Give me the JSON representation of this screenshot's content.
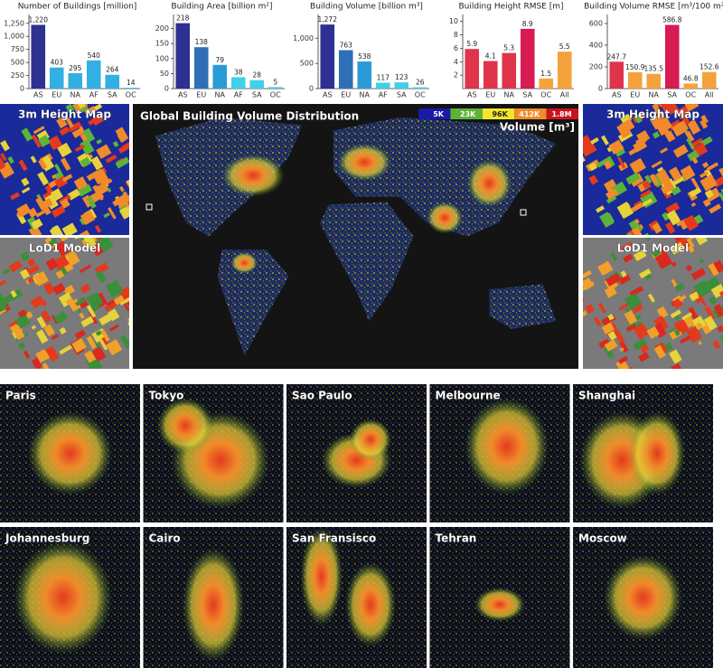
{
  "chart_data": [
    {
      "type": "bar",
      "title": "Number of Buildings [million]",
      "categories": [
        "AS",
        "EU",
        "NA",
        "AF",
        "SA",
        "OC"
      ],
      "values": [
        1220,
        403,
        295,
        540,
        264,
        14
      ],
      "value_labels": [
        "1,220",
        "403",
        "295",
        "540",
        "264",
        "14"
      ],
      "colors": [
        "#2e3092",
        "#33b0e3",
        "#33b0e3",
        "#33b0e3",
        "#33b0e3",
        "#33b0e3"
      ],
      "ylim": [
        0,
        1350
      ],
      "yticks": [
        0,
        250,
        500,
        750,
        {
          "value": 1000,
          "label": "1,000"
        },
        {
          "value": 1250,
          "label": "1,250"
        }
      ]
    },
    {
      "type": "bar",
      "title": "Building Area [billion m²]",
      "categories": [
        "AS",
        "EU",
        "NA",
        "AF",
        "SA",
        "OC"
      ],
      "values": [
        218,
        138,
        79,
        38,
        28,
        5
      ],
      "colors": [
        "#2e3092",
        "#2e6fb7",
        "#2a9bd6",
        "#3fd0ea",
        "#3fd0ea",
        "#3fd0ea"
      ],
      "ylim": [
        0,
        235
      ],
      "yticks": [
        0,
        50,
        100,
        150,
        200
      ]
    },
    {
      "type": "bar",
      "title": "Building Volume [billion m³]",
      "categories": [
        "AS",
        "EU",
        "NA",
        "AF",
        "SA",
        "OC"
      ],
      "values": [
        1272,
        763,
        538,
        117,
        123,
        26
      ],
      "value_labels": [
        "1,272",
        "763",
        "538",
        "117",
        "123",
        "26"
      ],
      "colors": [
        "#2e3092",
        "#2e6fb7",
        "#2a9bd6",
        "#3fd0ea",
        "#3fd0ea",
        "#3fd0ea"
      ],
      "ylim": [
        0,
        1400
      ],
      "yticks": [
        0,
        500,
        {
          "value": 1000,
          "label": "1,000"
        }
      ]
    },
    {
      "type": "bar",
      "title": "Building Height RMSE [m]",
      "categories": [
        "AS",
        "EU",
        "NA",
        "SA",
        "OC",
        "All"
      ],
      "values": [
        5.9,
        4.1,
        5.3,
        8.9,
        1.5,
        5.5
      ],
      "colors": [
        "#e0344a",
        "#e0344a",
        "#e0344a",
        "#d81b53",
        "#f4a23c",
        "#f4a23c"
      ],
      "ylim": [
        0,
        10.5
      ],
      "yticks": [
        2,
        4,
        6,
        8,
        10
      ]
    },
    {
      "type": "bar",
      "title": "Building Volume RMSE [m³/100 m²]",
      "categories": [
        "AS",
        "EU",
        "NA",
        "SA",
        "OC",
        "All"
      ],
      "values": [
        247.7,
        150.9,
        135.5,
        586.8,
        46.8,
        152.6
      ],
      "colors": [
        "#e0344a",
        "#f4a23c",
        "#f4a23c",
        "#d81b53",
        "#f4a23c",
        "#f4a23c"
      ],
      "ylim": [
        0,
        650
      ],
      "yticks": [
        0,
        200,
        400,
        600
      ]
    }
  ],
  "map": {
    "title": "Global Building Volume Distribution",
    "legend_labels": [
      "5K",
      "23K",
      "96K",
      "412K",
      "1.8M"
    ],
    "legend_title": "Volume [m³]",
    "insets": [
      "3m Height Map",
      "LoD1 Model",
      "3m Height Map",
      "LoD1 Model"
    ]
  },
  "cities": [
    "Paris",
    "Tokyo",
    "Sao Paulo",
    "Melbourne",
    "Shanghai",
    "Johannesburg",
    "Cairo",
    "San Fransisco",
    "Tehran",
    "Moscow"
  ]
}
